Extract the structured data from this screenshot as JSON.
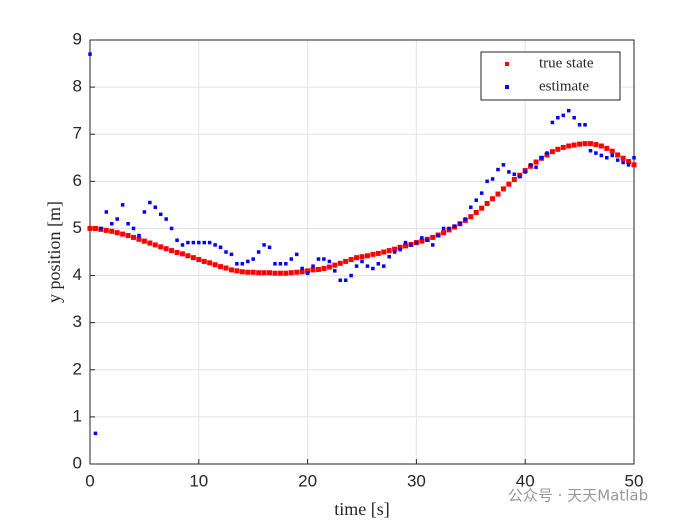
{
  "chart_data": {
    "type": "scatter",
    "x_label": "time [s]",
    "y_label": "y position [m]",
    "xlim": [
      0,
      50
    ],
    "ylim": [
      0,
      9
    ],
    "xticks": [
      0,
      10,
      20,
      30,
      40,
      50
    ],
    "yticks": [
      0,
      1,
      2,
      3,
      4,
      5,
      6,
      7,
      8,
      9
    ],
    "grid": true,
    "legend": "northeast",
    "watermark": "公众号 · 天天Matlab",
    "x": [
      0,
      0.5,
      1,
      1.5,
      2,
      2.5,
      3,
      3.5,
      4,
      4.5,
      5,
      5.5,
      6,
      6.5,
      7,
      7.5,
      8,
      8.5,
      9,
      9.5,
      10,
      10.5,
      11,
      11.5,
      12,
      12.5,
      13,
      13.5,
      14,
      14.5,
      15,
      15.5,
      16,
      16.5,
      17,
      17.5,
      18,
      18.5,
      19,
      19.5,
      20,
      20.5,
      21,
      21.5,
      22,
      22.5,
      23,
      23.5,
      24,
      24.5,
      25,
      25.5,
      26,
      26.5,
      27,
      27.5,
      28,
      28.5,
      29,
      29.5,
      30,
      30.5,
      31,
      31.5,
      32,
      32.5,
      33,
      33.5,
      34,
      34.5,
      35,
      35.5,
      36,
      36.5,
      37,
      37.5,
      38,
      38.5,
      39,
      39.5,
      40,
      40.5,
      41,
      41.5,
      42,
      42.5,
      43,
      43.5,
      44,
      44.5,
      45,
      45.5,
      46,
      46.5,
      47,
      47.5,
      48,
      48.5,
      49,
      49.5,
      50
    ],
    "series": [
      {
        "name": "true state",
        "color": "#ff0000",
        "values": [
          5.0,
          5.0,
          4.98,
          4.96,
          4.94,
          4.91,
          4.88,
          4.85,
          4.81,
          4.77,
          4.73,
          4.69,
          4.65,
          4.61,
          4.57,
          4.53,
          4.49,
          4.46,
          4.42,
          4.38,
          4.34,
          4.3,
          4.27,
          4.23,
          4.19,
          4.16,
          4.12,
          4.1,
          4.08,
          4.07,
          4.07,
          4.06,
          4.06,
          4.06,
          4.05,
          4.05,
          4.05,
          4.06,
          4.07,
          4.08,
          4.1,
          4.12,
          4.13,
          4.15,
          4.18,
          4.22,
          4.26,
          4.3,
          4.34,
          4.38,
          4.4,
          4.42,
          4.45,
          4.47,
          4.5,
          4.53,
          4.56,
          4.6,
          4.63,
          4.66,
          4.7,
          4.73,
          4.77,
          4.81,
          4.86,
          4.91,
          4.97,
          5.03,
          5.1,
          5.17,
          5.25,
          5.34,
          5.43,
          5.53,
          5.63,
          5.73,
          5.84,
          5.94,
          6.04,
          6.13,
          6.23,
          6.32,
          6.41,
          6.49,
          6.56,
          6.63,
          6.68,
          6.72,
          6.75,
          6.77,
          6.79,
          6.8,
          6.8,
          6.78,
          6.75,
          6.7,
          6.64,
          6.56,
          6.49,
          6.42,
          6.35
        ]
      },
      {
        "name": "estimate",
        "color": "#0000ff",
        "values": [
          8.7,
          0.65,
          5.0,
          5.35,
          5.1,
          5.2,
          5.5,
          5.1,
          5.0,
          4.85,
          5.35,
          5.55,
          5.45,
          5.3,
          5.2,
          5.0,
          4.75,
          4.65,
          4.7,
          4.7,
          4.7,
          4.7,
          4.7,
          4.65,
          4.6,
          4.5,
          4.45,
          4.25,
          4.25,
          4.3,
          4.35,
          4.5,
          4.65,
          4.6,
          4.25,
          4.25,
          4.25,
          4.35,
          4.45,
          4.15,
          4.05,
          4.2,
          4.35,
          4.35,
          4.3,
          4.1,
          3.9,
          3.9,
          4.0,
          4.2,
          4.3,
          4.2,
          4.15,
          4.25,
          4.2,
          4.4,
          4.5,
          4.55,
          4.7,
          4.65,
          4.7,
          4.8,
          4.75,
          4.65,
          4.85,
          5.0,
          5.0,
          5.05,
          5.1,
          5.2,
          5.45,
          5.6,
          5.75,
          6.0,
          6.05,
          6.25,
          6.35,
          6.2,
          6.15,
          6.1,
          6.2,
          6.35,
          6.3,
          6.5,
          6.6,
          7.25,
          7.35,
          7.4,
          7.5,
          7.35,
          7.2,
          7.2,
          6.65,
          6.6,
          6.55,
          6.5,
          6.55,
          6.45,
          6.4,
          6.35,
          6.5
        ]
      }
    ]
  }
}
